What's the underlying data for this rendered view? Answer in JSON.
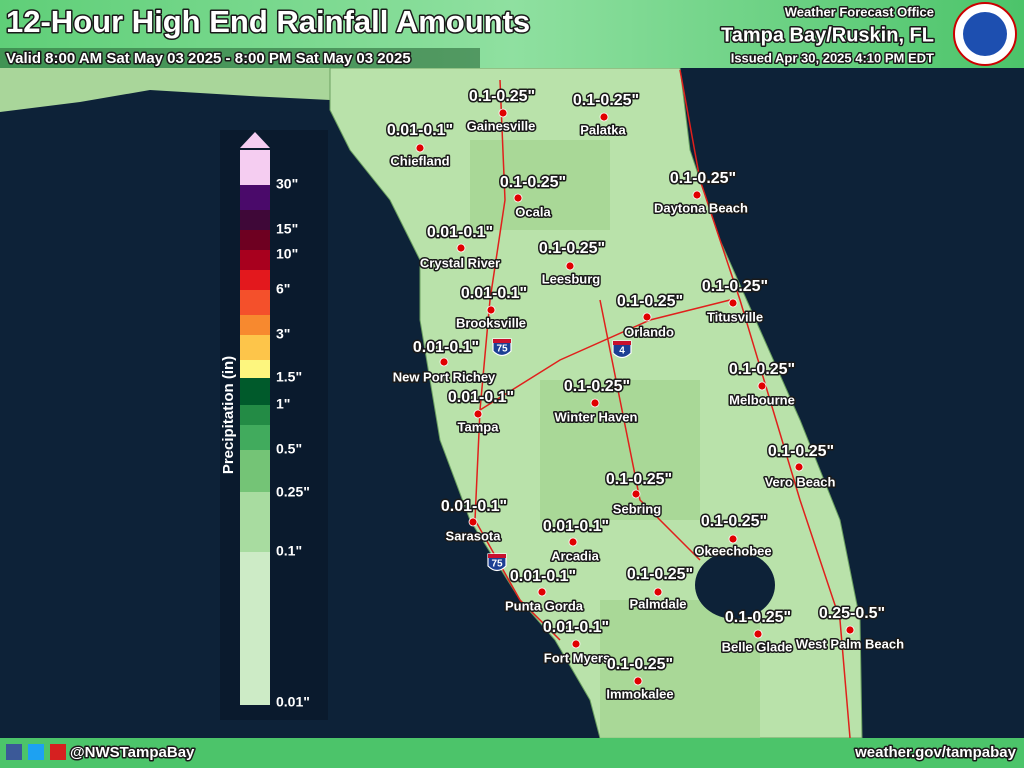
{
  "header": {
    "title": "12-Hour High End Rainfall Amounts",
    "valid": "Valid 8:00 AM Sat May 03 2025 - 8:00 PM Sat May 03 2025",
    "office": "Weather Forecast Office",
    "location": "Tampa Bay/Ruskin, FL",
    "issued": "Issued Apr 30, 2025 4:10 PM EDT"
  },
  "legend": {
    "title": "Precipitation (in)",
    "labels": [
      "30\"",
      "15\"",
      "10\"",
      "6\"",
      "3\"",
      "1.5\"",
      "1\"",
      "0.5\"",
      "0.25\"",
      "0.1\"",
      "0.01\""
    ]
  },
  "cities": [
    {
      "name": "Gainesville",
      "amount": "0.1-0.25\""
    },
    {
      "name": "Palatka",
      "amount": "0.1-0.25\""
    },
    {
      "name": "Chiefland",
      "amount": "0.01-0.1\""
    },
    {
      "name": "Ocala",
      "amount": "0.1-0.25\""
    },
    {
      "name": "Daytona Beach",
      "amount": "0.1-0.25\""
    },
    {
      "name": "Crystal River",
      "amount": "0.01-0.1\""
    },
    {
      "name": "Leesburg",
      "amount": "0.1-0.25\""
    },
    {
      "name": "Brooksville",
      "amount": "0.01-0.1\""
    },
    {
      "name": "Titusville",
      "amount": "0.1-0.25\""
    },
    {
      "name": "Orlando",
      "amount": "0.1-0.25\""
    },
    {
      "name": "New Port Richey",
      "amount": "0.01-0.1\""
    },
    {
      "name": "Melbourne",
      "amount": "0.1-0.25\""
    },
    {
      "name": "Winter Haven",
      "amount": "0.1-0.25\""
    },
    {
      "name": "Tampa",
      "amount": "0.01-0.1\""
    },
    {
      "name": "Vero Beach",
      "amount": "0.1-0.25\""
    },
    {
      "name": "Sebring",
      "amount": "0.1-0.25\""
    },
    {
      "name": "Sarasota",
      "amount": "0.01-0.1\""
    },
    {
      "name": "Okeechobee",
      "amount": "0.1-0.25\""
    },
    {
      "name": "Arcadia",
      "amount": "0.01-0.1\""
    },
    {
      "name": "Punta Gorda",
      "amount": "0.01-0.1\""
    },
    {
      "name": "Palmdale",
      "amount": "0.1-0.25\""
    },
    {
      "name": "West Palm Beach",
      "amount": "0.25-0.5\""
    },
    {
      "name": "Belle Glade",
      "amount": "0.1-0.25\""
    },
    {
      "name": "Fort Myers",
      "amount": "0.01-0.1\""
    },
    {
      "name": "Immokalee",
      "amount": "0.1-0.25\""
    }
  ],
  "shields": [
    "75",
    "4",
    "75"
  ],
  "footer": {
    "handle": "@NWSTampaBay",
    "url": "weather.gov/tampabay"
  }
}
